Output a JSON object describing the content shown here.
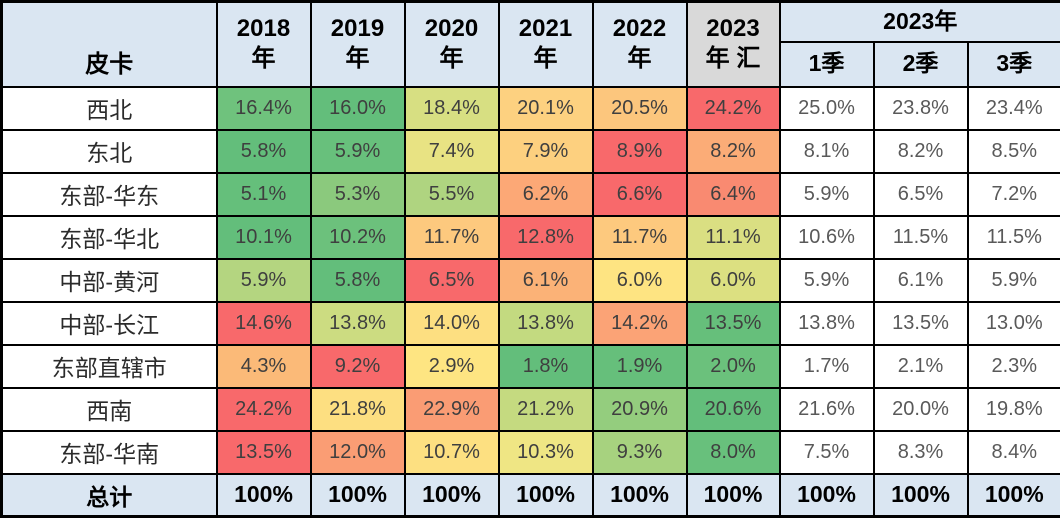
{
  "table": {
    "corner_label": "皮卡",
    "group_header": "2023年",
    "year_headers": [
      {
        "l1": "2018",
        "l2": "年",
        "bg": "#DAE6F2"
      },
      {
        "l1": "2019",
        "l2": "年",
        "bg": "#DAE6F2"
      },
      {
        "l1": "2020",
        "l2": "年",
        "bg": "#DAE6F2"
      },
      {
        "l1": "2021",
        "l2": "年",
        "bg": "#DAE6F2"
      },
      {
        "l1": "2022",
        "l2": "年",
        "bg": "#DAE6F2"
      },
      {
        "l1": "2023",
        "l2": "年 汇",
        "bg": "#D9D9D9"
      }
    ],
    "quarter_headers": [
      "1季",
      "2季",
      "3季"
    ],
    "rows": [
      {
        "label": "西北",
        "cells": [
          {
            "v": "16.4%",
            "bg": "#6FC27D"
          },
          {
            "v": "16.0%",
            "bg": "#63BE7B"
          },
          {
            "v": "18.4%",
            "bg": "#D7DF82"
          },
          {
            "v": "20.1%",
            "bg": "#FDD180"
          },
          {
            "v": "20.5%",
            "bg": "#FCC67D"
          },
          {
            "v": "24.2%",
            "bg": "#F8696B"
          }
        ],
        "quarters": [
          "25.0%",
          "23.8%",
          "23.4%"
        ]
      },
      {
        "label": "东北",
        "cells": [
          {
            "v": "5.8%",
            "bg": "#63BE7B"
          },
          {
            "v": "5.9%",
            "bg": "#68C07C"
          },
          {
            "v": "7.4%",
            "bg": "#E8E383"
          },
          {
            "v": "7.9%",
            "bg": "#FDD07F"
          },
          {
            "v": "8.9%",
            "bg": "#F8696B"
          },
          {
            "v": "8.2%",
            "bg": "#FBAC77"
          }
        ],
        "quarters": [
          "8.1%",
          "8.2%",
          "8.5%"
        ]
      },
      {
        "label": "东部-华东",
        "cells": [
          {
            "v": "5.1%",
            "bg": "#65BF7B"
          },
          {
            "v": "5.3%",
            "bg": "#8BC97D"
          },
          {
            "v": "5.5%",
            "bg": "#AFD480"
          },
          {
            "v": "6.2%",
            "bg": "#FCA876"
          },
          {
            "v": "6.6%",
            "bg": "#F8696B"
          },
          {
            "v": "6.4%",
            "bg": "#F98A71"
          }
        ],
        "quarters": [
          "5.9%",
          "6.5%",
          "7.2%"
        ]
      },
      {
        "label": "东部-华北",
        "cells": [
          {
            "v": "10.1%",
            "bg": "#63BE7B"
          },
          {
            "v": "10.2%",
            "bg": "#6CC17C"
          },
          {
            "v": "11.7%",
            "bg": "#FDC97E"
          },
          {
            "v": "12.8%",
            "bg": "#F8696B"
          },
          {
            "v": "11.7%",
            "bg": "#FDC97E"
          },
          {
            "v": "11.1%",
            "bg": "#DADF82"
          }
        ],
        "quarters": [
          "10.6%",
          "11.5%",
          "11.5%"
        ]
      },
      {
        "label": "中部-黄河",
        "cells": [
          {
            "v": "5.9%",
            "bg": "#B4D580"
          },
          {
            "v": "5.8%",
            "bg": "#63BE7B"
          },
          {
            "v": "6.5%",
            "bg": "#F8696B"
          },
          {
            "v": "6.1%",
            "bg": "#FBB277"
          },
          {
            "v": "6.0%",
            "bg": "#FEE482"
          },
          {
            "v": "6.0%",
            "bg": "#DCE081"
          }
        ],
        "quarters": [
          "5.9%",
          "6.1%",
          "5.9%"
        ]
      },
      {
        "label": "中部-长江",
        "cells": [
          {
            "v": "14.6%",
            "bg": "#F8696B"
          },
          {
            "v": "13.8%",
            "bg": "#CCDC81"
          },
          {
            "v": "14.0%",
            "bg": "#FDDF81"
          },
          {
            "v": "13.8%",
            "bg": "#C3DA80"
          },
          {
            "v": "14.2%",
            "bg": "#FBA376"
          },
          {
            "v": "13.5%",
            "bg": "#66BF7B"
          }
        ],
        "quarters": [
          "13.8%",
          "13.5%",
          "13.0%"
        ]
      },
      {
        "label": "东部直辖市",
        "cells": [
          {
            "v": "4.3%",
            "bg": "#FBBA78"
          },
          {
            "v": "9.2%",
            "bg": "#F8696B"
          },
          {
            "v": "2.9%",
            "bg": "#FEE582"
          },
          {
            "v": "1.8%",
            "bg": "#63BE7B"
          },
          {
            "v": "1.9%",
            "bg": "#66BF7B"
          },
          {
            "v": "2.0%",
            "bg": "#6BC17C"
          }
        ],
        "quarters": [
          "1.7%",
          "2.1%",
          "2.3%"
        ]
      },
      {
        "label": "西南",
        "cells": [
          {
            "v": "24.2%",
            "bg": "#F8696B"
          },
          {
            "v": "21.8%",
            "bg": "#FDDF81"
          },
          {
            "v": "22.9%",
            "bg": "#FA9C74"
          },
          {
            "v": "21.2%",
            "bg": "#C5DA80"
          },
          {
            "v": "20.9%",
            "bg": "#94CD7E"
          },
          {
            "v": "20.6%",
            "bg": "#63BE7B"
          }
        ],
        "quarters": [
          "21.6%",
          "20.0%",
          "19.8%"
        ]
      },
      {
        "label": "东部-华南",
        "cells": [
          {
            "v": "13.5%",
            "bg": "#F8696B"
          },
          {
            "v": "12.0%",
            "bg": "#FA9D74"
          },
          {
            "v": "10.7%",
            "bg": "#FDE081"
          },
          {
            "v": "10.3%",
            "bg": "#EFE684"
          },
          {
            "v": "9.3%",
            "bg": "#A7D27F"
          },
          {
            "v": "8.0%",
            "bg": "#68C07C"
          }
        ],
        "quarters": [
          "7.5%",
          "8.3%",
          "8.4%"
        ]
      }
    ],
    "total_row": {
      "label": "总计",
      "values": [
        "100%",
        "100%",
        "100%",
        "100%",
        "100%",
        "100%",
        "100%",
        "100%",
        "100%"
      ],
      "bg": "#DAE6F2"
    },
    "colors": {
      "header_blue": "#DAE6F2",
      "header_gray": "#D9D9D9",
      "scale_low_green": "#63BE7B",
      "scale_mid_yellow": "#FFEB84",
      "scale_high_red": "#F8696B",
      "border": "#000000"
    }
  },
  "chart_data": {
    "type": "heatmap",
    "title": "皮卡",
    "columns": [
      "2018年",
      "2019年",
      "2020年",
      "2021年",
      "2022年",
      "2023年汇",
      "2023年1季",
      "2023年2季",
      "2023年3季"
    ],
    "rows": [
      "西北",
      "东北",
      "东部-华东",
      "东部-华北",
      "中部-黄河",
      "中部-长江",
      "东部直辖市",
      "西南",
      "东部-华南",
      "总计"
    ],
    "values_percent": [
      [
        16.4,
        16.0,
        18.4,
        20.1,
        20.5,
        24.2,
        25.0,
        23.8,
        23.4
      ],
      [
        5.8,
        5.9,
        7.4,
        7.9,
        8.9,
        8.2,
        8.1,
        8.2,
        8.5
      ],
      [
        5.1,
        5.3,
        5.5,
        6.2,
        6.6,
        6.4,
        5.9,
        6.5,
        7.2
      ],
      [
        10.1,
        10.2,
        11.7,
        12.8,
        11.7,
        11.1,
        10.6,
        11.5,
        11.5
      ],
      [
        5.9,
        5.8,
        6.5,
        6.1,
        6.0,
        6.0,
        5.9,
        6.1,
        5.9
      ],
      [
        14.6,
        13.8,
        14.0,
        13.8,
        14.2,
        13.5,
        13.8,
        13.5,
        13.0
      ],
      [
        4.3,
        9.2,
        2.9,
        1.8,
        1.9,
        2.0,
        1.7,
        2.1,
        2.3
      ],
      [
        24.2,
        21.8,
        22.9,
        21.2,
        20.9,
        20.6,
        21.6,
        20.0,
        19.8
      ],
      [
        13.5,
        12.0,
        10.7,
        10.3,
        9.3,
        8.0,
        7.5,
        8.3,
        8.4
      ],
      [
        100,
        100,
        100,
        100,
        100,
        100,
        100,
        100,
        100
      ]
    ],
    "color_scale": {
      "low": "#63BE7B",
      "mid": "#FFEB84",
      "high": "#F8696B",
      "scope": "per-row across 2018年–2023年汇 columns; quarter columns uncolored"
    },
    "legend_position": "none",
    "grid": "table borders"
  }
}
